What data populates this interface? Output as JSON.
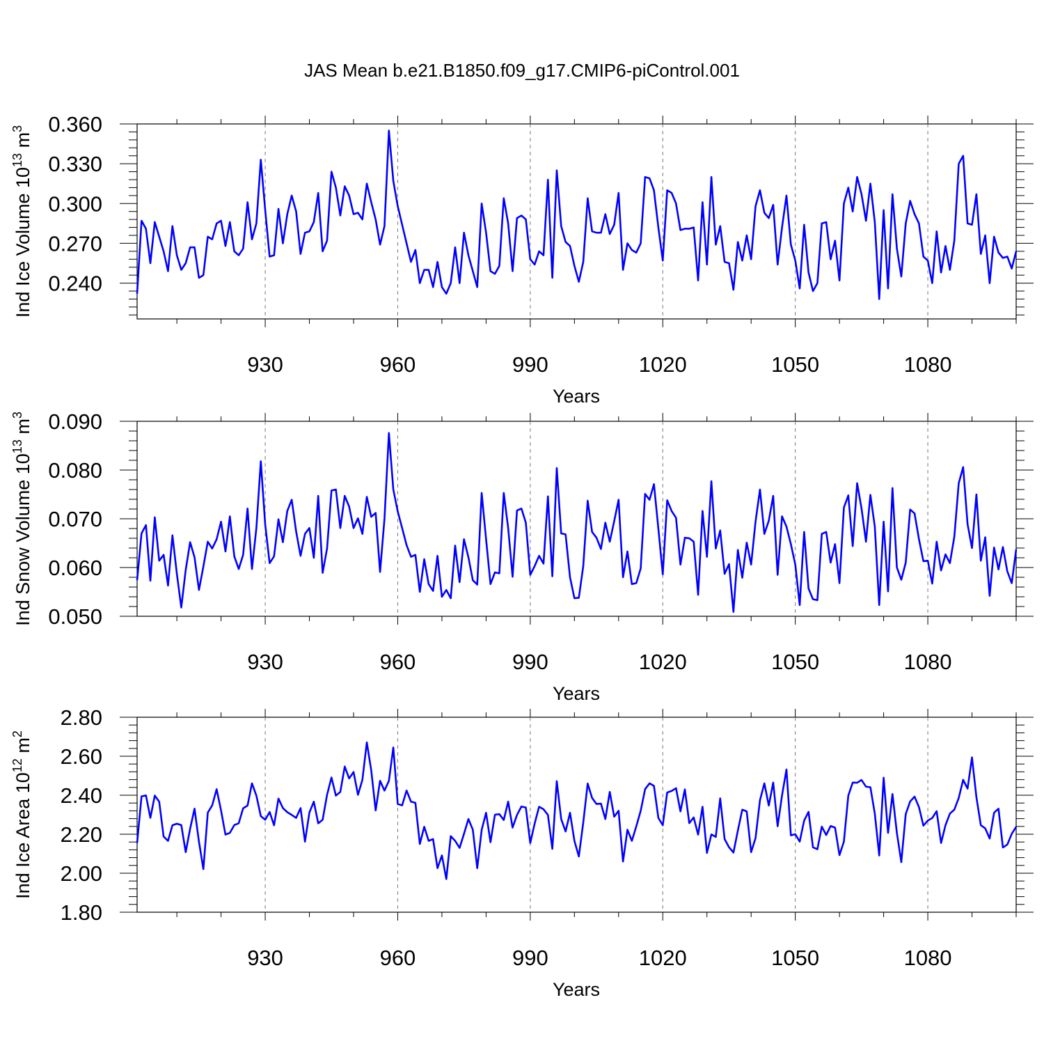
{
  "figure": {
    "title": "JAS Mean b.e21.B1850.f09_g17.CMIP6-piControl.001",
    "line_color": "#0000ff"
  },
  "chart_data": [
    {
      "type": "line",
      "title": "JAS Mean b.e21.B1850.f09_g17.CMIP6-piControl.001",
      "ylabel_main": "Ind Ice Volume 10",
      "ylabel_exp": "13",
      "ylabel_unit": " m",
      "ylabel_unit_exp": "3",
      "xlabel": "Years",
      "xlim": [
        901,
        1100
      ],
      "ylim": [
        0.213,
        0.36
      ],
      "yticks": [
        0.24,
        0.27,
        0.3,
        0.33,
        0.36
      ],
      "ytick_labels": [
        "0.240",
        "0.270",
        "0.300",
        "0.330",
        "0.360"
      ],
      "xticks": [
        930,
        960,
        990,
        1020,
        1050,
        1080
      ],
      "xtick_labels": [
        "930",
        "960",
        "990",
        "1020",
        "1050",
        "1080"
      ],
      "x_start": 901,
      "values": [
        0.232,
        0.287,
        0.281,
        0.255,
        0.286,
        0.275,
        0.264,
        0.249,
        0.283,
        0.261,
        0.25,
        0.255,
        0.267,
        0.267,
        0.244,
        0.246,
        0.275,
        0.273,
        0.285,
        0.287,
        0.268,
        0.286,
        0.264,
        0.261,
        0.266,
        0.301,
        0.273,
        0.285,
        0.333,
        0.295,
        0.26,
        0.261,
        0.296,
        0.27,
        0.292,
        0.306,
        0.294,
        0.262,
        0.278,
        0.279,
        0.286,
        0.308,
        0.264,
        0.272,
        0.324,
        0.312,
        0.291,
        0.313,
        0.306,
        0.292,
        0.293,
        0.288,
        0.315,
        0.301,
        0.288,
        0.269,
        0.283,
        0.355,
        0.317,
        0.298,
        0.284,
        0.27,
        0.256,
        0.265,
        0.24,
        0.25,
        0.25,
        0.237,
        0.256,
        0.237,
        0.232,
        0.24,
        0.267,
        0.24,
        0.278,
        0.261,
        0.249,
        0.237,
        0.3,
        0.278,
        0.249,
        0.247,
        0.253,
        0.304,
        0.285,
        0.249,
        0.289,
        0.291,
        0.288,
        0.258,
        0.254,
        0.264,
        0.261,
        0.318,
        0.244,
        0.325,
        0.283,
        0.271,
        0.268,
        0.253,
        0.241,
        0.256,
        0.304,
        0.279,
        0.278,
        0.278,
        0.292,
        0.277,
        0.284,
        0.308,
        0.25,
        0.27,
        0.265,
        0.263,
        0.27,
        0.32,
        0.319,
        0.31,
        0.282,
        0.257,
        0.31,
        0.308,
        0.3,
        0.28,
        0.281,
        0.281,
        0.282,
        0.242,
        0.301,
        0.254,
        0.32,
        0.269,
        0.283,
        0.256,
        0.255,
        0.235,
        0.271,
        0.257,
        0.276,
        0.258,
        0.298,
        0.31,
        0.293,
        0.289,
        0.299,
        0.254,
        0.282,
        0.306,
        0.269,
        0.257,
        0.236,
        0.284,
        0.248,
        0.234,
        0.24,
        0.285,
        0.286,
        0.258,
        0.272,
        0.242,
        0.3,
        0.312,
        0.294,
        0.32,
        0.307,
        0.287,
        0.315,
        0.286,
        0.228,
        0.295,
        0.236,
        0.307,
        0.266,
        0.245,
        0.285,
        0.302,
        0.292,
        0.285,
        0.26,
        0.257,
        0.24,
        0.279,
        0.248,
        0.268,
        0.25,
        0.272,
        0.33,
        0.336,
        0.285,
        0.284,
        0.307,
        0.262,
        0.276,
        0.24,
        0.275,
        0.263,
        0.259,
        0.26,
        0.251,
        0.264
      ]
    },
    {
      "type": "line",
      "ylabel_main": "Ind Snow Volume 10",
      "ylabel_exp": "13",
      "ylabel_unit": " m",
      "ylabel_unit_exp": "3",
      "xlabel": "Years",
      "xlim": [
        901,
        1100
      ],
      "ylim": [
        0.05,
        0.09
      ],
      "yticks": [
        0.05,
        0.06,
        0.07,
        0.08,
        0.09
      ],
      "ytick_labels": [
        "0.050",
        "0.060",
        "0.070",
        "0.080",
        "0.090"
      ],
      "xticks": [
        930,
        960,
        990,
        1020,
        1050,
        1080
      ],
      "xtick_labels": [
        "930",
        "960",
        "990",
        "1020",
        "1050",
        "1080"
      ],
      "x_start": 901,
      "values": [
        0.0574,
        0.067,
        0.0687,
        0.0573,
        0.0703,
        0.0614,
        0.0626,
        0.0563,
        0.0666,
        0.0587,
        0.0518,
        0.0595,
        0.0652,
        0.0621,
        0.0554,
        0.0602,
        0.0653,
        0.0639,
        0.0658,
        0.0694,
        0.0633,
        0.0705,
        0.0623,
        0.0597,
        0.0626,
        0.0721,
        0.0597,
        0.0681,
        0.0818,
        0.0688,
        0.0609,
        0.0623,
        0.0699,
        0.0652,
        0.0716,
        0.0739,
        0.0674,
        0.0624,
        0.0669,
        0.0681,
        0.062,
        0.0747,
        0.0589,
        0.0639,
        0.0758,
        0.076,
        0.0681,
        0.0747,
        0.0725,
        0.0681,
        0.0701,
        0.0669,
        0.0745,
        0.0704,
        0.0712,
        0.0591,
        0.07,
        0.0876,
        0.076,
        0.0715,
        0.0681,
        0.0646,
        0.0622,
        0.0626,
        0.055,
        0.0617,
        0.0566,
        0.0552,
        0.0624,
        0.054,
        0.0554,
        0.0537,
        0.0645,
        0.057,
        0.0658,
        0.0621,
        0.0574,
        0.0565,
        0.0753,
        0.0658,
        0.0566,
        0.059,
        0.0588,
        0.0753,
        0.0681,
        0.0581,
        0.0717,
        0.0721,
        0.0692,
        0.0585,
        0.0603,
        0.0624,
        0.0608,
        0.0746,
        0.0582,
        0.0804,
        0.067,
        0.0668,
        0.058,
        0.0537,
        0.0538,
        0.0603,
        0.0737,
        0.0673,
        0.0661,
        0.0638,
        0.0692,
        0.0653,
        0.0695,
        0.0739,
        0.058,
        0.0633,
        0.0566,
        0.0568,
        0.0598,
        0.0751,
        0.0739,
        0.0771,
        0.068,
        0.0586,
        0.0738,
        0.0716,
        0.0702,
        0.0606,
        0.0661,
        0.066,
        0.0653,
        0.0544,
        0.0716,
        0.0622,
        0.0777,
        0.0639,
        0.0676,
        0.0587,
        0.0607,
        0.0509,
        0.0636,
        0.0579,
        0.0651,
        0.0606,
        0.0694,
        0.076,
        0.0669,
        0.0696,
        0.0747,
        0.0585,
        0.0705,
        0.0684,
        0.0648,
        0.0606,
        0.0523,
        0.0673,
        0.0557,
        0.0535,
        0.0533,
        0.0669,
        0.0673,
        0.061,
        0.0648,
        0.0568,
        0.0723,
        0.0748,
        0.0644,
        0.0773,
        0.0721,
        0.0653,
        0.0749,
        0.0684,
        0.0523,
        0.0694,
        0.0551,
        0.0763,
        0.06,
        0.0575,
        0.061,
        0.0719,
        0.0711,
        0.0658,
        0.0613,
        0.0614,
        0.0567,
        0.0653,
        0.0594,
        0.0627,
        0.0609,
        0.0663,
        0.0773,
        0.0806,
        0.0689,
        0.064,
        0.075,
        0.0614,
        0.0662,
        0.0542,
        0.0641,
        0.0596,
        0.0642,
        0.0592,
        0.0568,
        0.0637
      ]
    },
    {
      "type": "line",
      "ylabel_main": "Ind Ice Area 10",
      "ylabel_exp": "12",
      "ylabel_unit": " m",
      "ylabel_unit_exp": "2",
      "xlabel": "Years",
      "xlim": [
        901,
        1100
      ],
      "ylim": [
        1.8,
        2.8
      ],
      "yticks": [
        1.8,
        2.0,
        2.2,
        2.4,
        2.6,
        2.8
      ],
      "ytick_labels": [
        "1.80",
        "2.00",
        "2.20",
        "2.40",
        "2.60",
        "2.80"
      ],
      "xticks": [
        930,
        960,
        990,
        1020,
        1050,
        1080
      ],
      "xtick_labels": [
        "930",
        "960",
        "990",
        "1020",
        "1050",
        "1080"
      ],
      "x_start": 901,
      "values": [
        2.155,
        2.394,
        2.399,
        2.284,
        2.398,
        2.367,
        2.188,
        2.166,
        2.246,
        2.254,
        2.247,
        2.108,
        2.228,
        2.331,
        2.162,
        2.021,
        2.311,
        2.348,
        2.431,
        2.322,
        2.198,
        2.207,
        2.247,
        2.256,
        2.333,
        2.347,
        2.461,
        2.398,
        2.293,
        2.274,
        2.314,
        2.246,
        2.383,
        2.334,
        2.313,
        2.299,
        2.284,
        2.334,
        2.162,
        2.311,
        2.367,
        2.256,
        2.274,
        2.402,
        2.491,
        2.398,
        2.417,
        2.547,
        2.486,
        2.519,
        2.402,
        2.479,
        2.671,
        2.528,
        2.322,
        2.474,
        2.424,
        2.474,
        2.645,
        2.355,
        2.348,
        2.424,
        2.367,
        2.361,
        2.15,
        2.238,
        2.166,
        2.175,
        2.026,
        2.091,
        1.97,
        2.19,
        2.166,
        2.13,
        2.202,
        2.278,
        2.223,
        2.026,
        2.222,
        2.31,
        2.159,
        2.3,
        2.303,
        2.273,
        2.367,
        2.234,
        2.299,
        2.342,
        2.337,
        2.155,
        2.255,
        2.341,
        2.328,
        2.299,
        2.125,
        2.472,
        2.278,
        2.214,
        2.31,
        2.166,
        2.086,
        2.26,
        2.46,
        2.386,
        2.355,
        2.357,
        2.278,
        2.417,
        2.29,
        2.32,
        2.06,
        2.223,
        2.166,
        2.24,
        2.32,
        2.431,
        2.461,
        2.448,
        2.284,
        2.246,
        2.414,
        2.422,
        2.436,
        2.317,
        2.43,
        2.257,
        2.286,
        2.198,
        2.341,
        2.104,
        2.199,
        2.186,
        2.384,
        2.175,
        2.133,
        2.106,
        2.219,
        2.326,
        2.317,
        2.108,
        2.18,
        2.374,
        2.461,
        2.347,
        2.465,
        2.241,
        2.399,
        2.532,
        2.194,
        2.2,
        2.162,
        2.27,
        2.315,
        2.133,
        2.123,
        2.239,
        2.196,
        2.242,
        2.234,
        2.093,
        2.162,
        2.398,
        2.465,
        2.464,
        2.478,
        2.444,
        2.441,
        2.306,
        2.091,
        2.49,
        2.207,
        2.406,
        2.206,
        2.057,
        2.303,
        2.368,
        2.393,
        2.339,
        2.244,
        2.27,
        2.283,
        2.318,
        2.155,
        2.246,
        2.306,
        2.326,
        2.386,
        2.479,
        2.434,
        2.594,
        2.39,
        2.246,
        2.23,
        2.178,
        2.31,
        2.331,
        2.132,
        2.147,
        2.202,
        2.238
      ]
    }
  ]
}
